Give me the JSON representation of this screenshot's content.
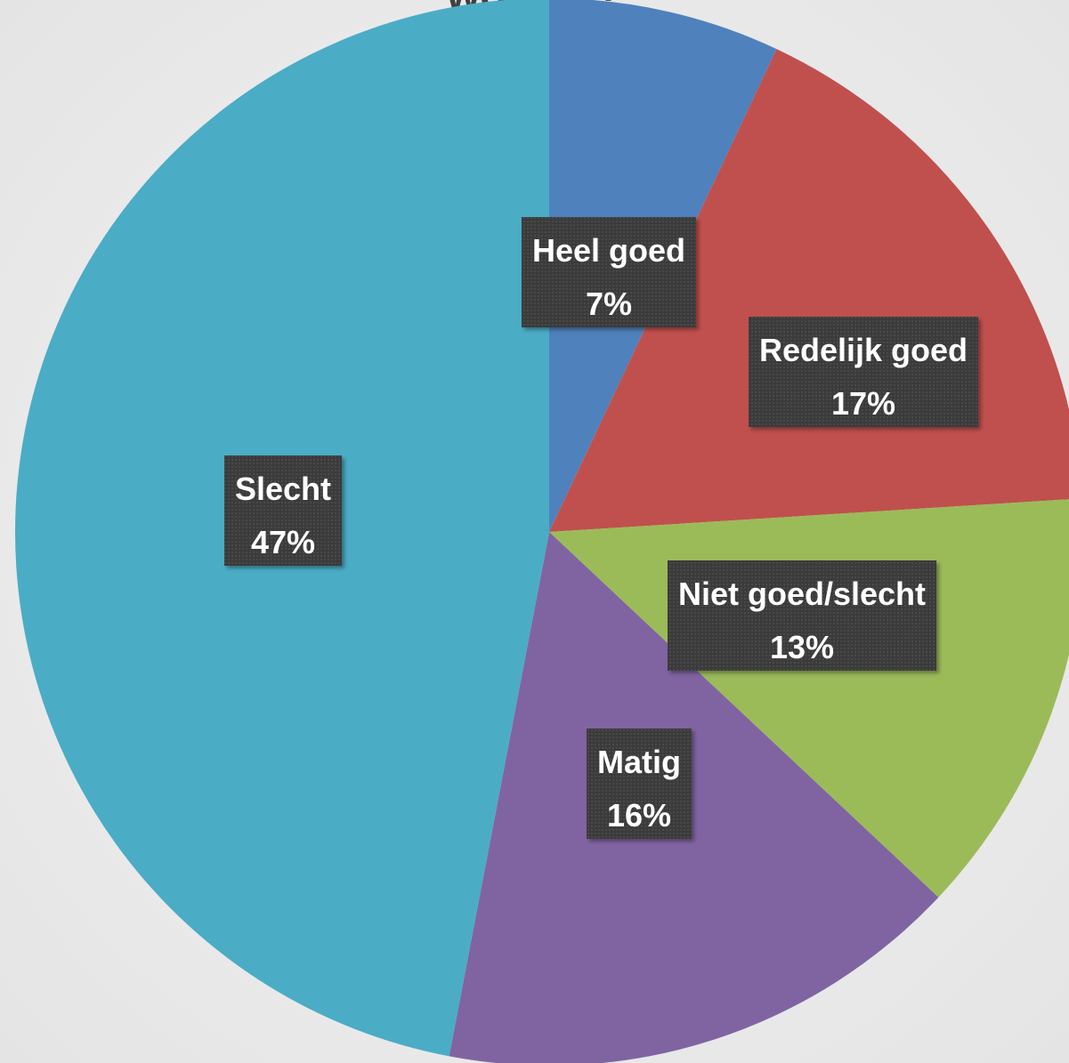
{
  "chart_data": {
    "type": "pie",
    "title": "woning?",
    "start_angle_deg": 0,
    "direction": "clockwise",
    "categories": [
      "Heel goed",
      "Redelijk goed",
      "Niet goed/slecht",
      "Matig",
      "Slecht"
    ],
    "values": [
      7,
      17,
      13,
      16,
      47
    ],
    "value_labels": [
      "7%",
      "17%",
      "13%",
      "16%",
      "47%"
    ],
    "colors": [
      "#4f81bd",
      "#c0504d",
      "#9bbb59",
      "#8064a2",
      "#4bacc6"
    ],
    "label_style": {
      "background": "#404040",
      "text_color": "#ffffff"
    }
  }
}
